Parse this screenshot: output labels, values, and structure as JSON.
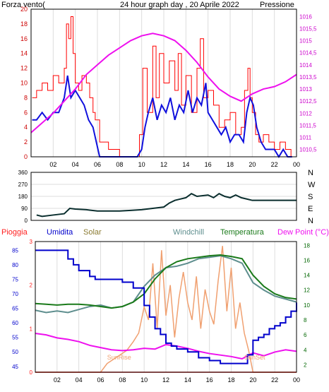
{
  "colors": {
    "wind_avg": "#1010dd",
    "wind_gust": "#ff0000",
    "pressure": "#ee10ee",
    "direction": "#0a2e2e",
    "humidity": "#0000cc",
    "rain": "#ff2020",
    "solar": "#f0a070",
    "windchill": "#5e8e8e",
    "temperature": "#1a7a1a",
    "dewpoint": "#ee10ee",
    "left_axis": "#cc0000",
    "right_axis": "#cc00cc",
    "temp_axis": "#006600",
    "frame": "#000000",
    "grid": "#dddddd"
  },
  "chart_data": [
    {
      "type": "line",
      "title": "24 hour graph day , 20 Aprile 2022",
      "ylabel_left": "Forza vento(",
      "ylabel_right": "Pressione",
      "x_ticks": [
        "02",
        "04",
        "06",
        "08",
        "10",
        "12",
        "14",
        "16",
        "18",
        "20",
        "22",
        "00"
      ],
      "x_hours": [
        2,
        4,
        6,
        8,
        10,
        12,
        14,
        16,
        18,
        20,
        22,
        24
      ],
      "ylim_left": [
        0,
        20
      ],
      "yticks_left": [
        "0",
        "2",
        "4",
        "6",
        "8",
        "10",
        "12",
        "14",
        "16",
        "18",
        "20"
      ],
      "ylim_right": [
        1010.2,
        1016.3
      ],
      "yticks_right": [
        "1010,5",
        "1011",
        "1011,5",
        "1012",
        "1012,5",
        "1013",
        "1013,5",
        "1014",
        "1014,5",
        "1015",
        "1015,5",
        "1016"
      ],
      "series": [
        {
          "key": "gust",
          "x": [
            0.1,
            0.5,
            1,
            1.5,
            2,
            2.5,
            3,
            3.2,
            3.4,
            3.6,
            3.8,
            4,
            4.3,
            4.6,
            5,
            5.3,
            5.6,
            5.8,
            6.2,
            7,
            8,
            9,
            9.8,
            10.1,
            10.5,
            11,
            11.3,
            11.6,
            12,
            12.5,
            13,
            13.3,
            13.6,
            14,
            14.5,
            15,
            15.3,
            15.6,
            16,
            16.5,
            17,
            17.5,
            18,
            18.5,
            19,
            19.3,
            19.6,
            19.8,
            20,
            20.3,
            20.6,
            21,
            21.5,
            22,
            22.5,
            23,
            23.5
          ],
          "values": [
            8,
            9,
            10,
            9,
            11,
            10,
            12,
            18,
            16,
            19,
            14,
            10,
            9,
            11,
            10,
            8,
            6,
            5,
            2,
            1,
            0,
            0,
            3,
            12,
            6,
            15,
            8,
            14,
            10,
            13,
            9,
            14,
            7,
            11,
            6,
            12,
            16,
            8,
            9,
            7,
            4,
            5,
            6,
            3,
            4,
            9,
            12,
            8,
            6,
            3,
            2,
            3,
            2,
            1,
            2,
            1,
            0
          ]
        },
        {
          "key": "avg",
          "x": [
            0.1,
            0.5,
            1,
            1.5,
            2,
            2.5,
            3,
            3.3,
            3.6,
            4,
            4.4,
            4.8,
            5.2,
            5.6,
            5.9,
            6.2,
            7,
            8,
            9,
            9.6,
            10,
            10.3,
            10.6,
            11,
            11.4,
            11.8,
            12.2,
            12.6,
            13,
            13.4,
            13.8,
            14.2,
            14.6,
            15,
            15.4,
            15.8,
            16,
            16.4,
            16.8,
            17.2,
            17.6,
            18,
            18.4,
            18.8,
            19.2,
            19.5,
            19.8,
            20.1,
            20.4,
            20.8,
            21.2,
            21.6,
            22,
            22.4,
            22.8,
            23.2,
            23.6
          ],
          "values": [
            5,
            5,
            6,
            5,
            6,
            6,
            8,
            11,
            8,
            9,
            8,
            7,
            5,
            4,
            2,
            0,
            0,
            0,
            0,
            0,
            1,
            4,
            6,
            8,
            5,
            7,
            6,
            8,
            5,
            7,
            6,
            9,
            6,
            8,
            7,
            10,
            6,
            5,
            4,
            3,
            4,
            2,
            3,
            3,
            2,
            6,
            8,
            7,
            4,
            2,
            1,
            1,
            1,
            0,
            1,
            0,
            0
          ]
        },
        {
          "key": "pressure",
          "x": [
            0,
            1,
            2,
            3,
            4,
            5,
            6,
            7,
            8,
            9,
            10,
            11,
            12,
            13,
            14,
            15,
            16,
            17,
            18,
            19,
            20,
            21,
            22,
            23,
            24
          ],
          "values": [
            1011.2,
            1011.6,
            1012.0,
            1012.5,
            1013.0,
            1013.6,
            1014.0,
            1014.4,
            1014.7,
            1015.0,
            1015.2,
            1015.3,
            1015.2,
            1015.0,
            1014.6,
            1014.1,
            1013.5,
            1013.0,
            1012.7,
            1012.5,
            1012.8,
            1013.0,
            1013.1,
            1013.3,
            1013.6
          ]
        }
      ]
    },
    {
      "type": "line",
      "title": "",
      "y_ticks": [
        "360",
        "270",
        "180",
        "90",
        "0"
      ],
      "ylim": [
        0,
        360
      ],
      "compass_labels": [
        "N",
        "W",
        "S",
        "E",
        "N"
      ],
      "series": [
        {
          "key": "direction",
          "x": [
            0.5,
            1,
            2,
            3,
            3.5,
            4,
            5,
            6,
            7,
            8,
            9,
            10,
            11,
            12,
            12.5,
            13,
            14,
            14.5,
            15,
            16,
            16.5,
            17,
            17.5,
            18,
            18.5,
            19,
            19.5,
            20,
            21,
            22,
            23,
            24
          ],
          "values": [
            40,
            30,
            40,
            50,
            90,
            85,
            80,
            70,
            70,
            70,
            75,
            80,
            90,
            100,
            130,
            150,
            170,
            200,
            180,
            190,
            170,
            200,
            180,
            170,
            190,
            170,
            160,
            150,
            150,
            150,
            150,
            150
          ]
        }
      ]
    },
    {
      "type": "line",
      "title": "",
      "legend": [
        "Pioggia",
        "Umidita",
        "Solar",
        "Windchill",
        "Temperatura",
        "Dew Point (°C)"
      ],
      "annotations": [
        "SunRise",
        "SunSet"
      ],
      "ylim_humidity": [
        43,
        88
      ],
      "yticks_humidity": [
        "45",
        "50",
        "55",
        "60",
        "65",
        "70",
        "75",
        "80",
        "85"
      ],
      "ylim_rain": [
        0,
        3
      ],
      "yticks_rain": [
        "0",
        "1",
        "2",
        "3"
      ],
      "ylim_temp": [
        1,
        18.5
      ],
      "yticks_temp": [
        "2",
        "4",
        "6",
        "8",
        "10",
        "12",
        "14",
        "16",
        "18"
      ],
      "series": [
        {
          "key": "humidity",
          "x": [
            0,
            2,
            3,
            3.5,
            4,
            4.5,
            5,
            5.5,
            6,
            7,
            8,
            9,
            10,
            10.5,
            11,
            11.5,
            12,
            12.5,
            13,
            14,
            15,
            16,
            17,
            18,
            18.5,
            19,
            19.5,
            20,
            20.5,
            21,
            21.5,
            22,
            22.5,
            23,
            23.5,
            24
          ],
          "values": [
            85,
            85,
            82,
            80,
            78,
            78,
            76,
            75,
            75,
            75,
            74,
            72,
            66,
            62,
            58,
            56,
            53,
            52,
            51,
            50,
            48,
            47,
            46,
            46,
            46,
            46,
            49,
            54,
            55,
            56,
            58,
            59,
            60,
            62,
            64,
            67
          ]
        },
        {
          "key": "dewpoint",
          "x": [
            0,
            1,
            2,
            3,
            4,
            5,
            6,
            7,
            8,
            9,
            10,
            11,
            12,
            13,
            14,
            15,
            16,
            17,
            18,
            19,
            20,
            21,
            22,
            23,
            24
          ],
          "values": [
            6.2,
            6.0,
            5.6,
            5.4,
            5.1,
            4.6,
            4.3,
            4.0,
            3.9,
            4.0,
            4.2,
            4.1,
            4.7,
            4.5,
            4.2,
            3.8,
            3.5,
            3.3,
            3.1,
            2.8,
            3.6,
            3.2,
            3.7,
            4.0,
            3.8
          ]
        },
        {
          "key": "temperature",
          "x": [
            0,
            1,
            2,
            3,
            4,
            5,
            6,
            7,
            8,
            9,
            10,
            11,
            12,
            13,
            14,
            15,
            16,
            17,
            18,
            19,
            20,
            21,
            22,
            23,
            24
          ],
          "values": [
            10.2,
            10.1,
            10.0,
            10.1,
            10.1,
            10.0,
            9.8,
            9.6,
            9.8,
            10.4,
            11.5,
            13.5,
            15.0,
            15.8,
            16.2,
            16.4,
            16.6,
            16.7,
            16.5,
            16.2,
            14.0,
            12.5,
            11.5,
            11.0,
            10.8
          ]
        },
        {
          "key": "windchill",
          "x": [
            0,
            1,
            2,
            3,
            4,
            5,
            6,
            7,
            8,
            9,
            10,
            11,
            12,
            13,
            14,
            15,
            16,
            17,
            18,
            19,
            20,
            21,
            22,
            23,
            24
          ],
          "values": [
            9.3,
            9.0,
            9.2,
            9.0,
            9.4,
            9.8,
            10.0,
            9.6,
            9.8,
            10.4,
            12.5,
            14.0,
            15.0,
            15.2,
            15.6,
            16.2,
            16.4,
            16.6,
            16.2,
            15.6,
            13.0,
            12.0,
            11.2,
            10.8,
            10.4
          ]
        },
        {
          "key": "solar",
          "x": [
            0,
            6,
            6.6,
            7.2,
            7.8,
            8.4,
            9,
            9.5,
            10,
            10.4,
            10.8,
            11.2,
            11.6,
            12,
            12.4,
            12.8,
            13.2,
            13.6,
            14,
            14.4,
            14.8,
            15.2,
            15.6,
            16,
            16.4,
            16.8,
            17.2,
            17.6,
            18,
            18.4,
            18.8,
            19.2,
            19.6,
            20,
            24
          ],
          "values": [
            0,
            0,
            0.2,
            0.3,
            0.4,
            0.5,
            0.7,
            0.9,
            1.5,
            1.2,
            2.5,
            1.0,
            2.8,
            1.3,
            2.0,
            0.8,
            1.7,
            2.3,
            1.6,
            1.2,
            2.2,
            1.0,
            1.9,
            1.4,
            1.1,
            2.1,
            2.9,
            1.4,
            2.4,
            1.0,
            1.6,
            0.9,
            0.5,
            0,
            0
          ]
        },
        {
          "key": "rain",
          "x": [
            0,
            24
          ],
          "values": [
            0,
            0
          ]
        }
      ]
    }
  ]
}
